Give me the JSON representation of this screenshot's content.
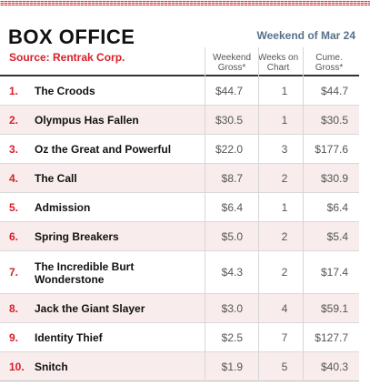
{
  "header": {
    "title": "BOX OFFICE",
    "source": "Source: Rentrak Corp.",
    "weekend": "Weekend of Mar 24"
  },
  "columns": {
    "gross": [
      "Weekend",
      "Gross*"
    ],
    "weeks": [
      "Weeks on",
      "Chart"
    ],
    "cume": [
      "Cume.",
      "Gross*"
    ]
  },
  "colors": {
    "accent": "#d72027",
    "date_label": "#57708a",
    "row_alt": "#f8ecec"
  },
  "rows": [
    {
      "rank": "1.",
      "title": "The Croods",
      "gross": "$44.7",
      "weeks": "1",
      "cume": "$44.7"
    },
    {
      "rank": "2.",
      "title": "Olympus Has Fallen",
      "gross": "$30.5",
      "weeks": "1",
      "cume": "$30.5"
    },
    {
      "rank": "3.",
      "title": "Oz the Great and Powerful",
      "gross": "$22.0",
      "weeks": "3",
      "cume": "$177.6"
    },
    {
      "rank": "4.",
      "title": "The Call",
      "gross": "$8.7",
      "weeks": "2",
      "cume": "$30.9"
    },
    {
      "rank": "5.",
      "title": "Admission",
      "gross": "$6.4",
      "weeks": "1",
      "cume": "$6.4"
    },
    {
      "rank": "6.",
      "title": "Spring Breakers",
      "gross": "$5.0",
      "weeks": "2",
      "cume": "$5.4"
    },
    {
      "rank": "7.",
      "title": "The Incredible Burt Wonderstone",
      "gross": "$4.3",
      "weeks": "2",
      "cume": "$17.4"
    },
    {
      "rank": "8.",
      "title": "Jack the Giant Slayer",
      "gross": "$3.0",
      "weeks": "4",
      "cume": "$59.1"
    },
    {
      "rank": "9.",
      "title": "Identity Thief",
      "gross": "$2.5",
      "weeks": "7",
      "cume": "$127.7"
    },
    {
      "rank": "10.",
      "title": "Snitch",
      "gross": "$1.9",
      "weeks": "5",
      "cume": "$40.3"
    }
  ]
}
